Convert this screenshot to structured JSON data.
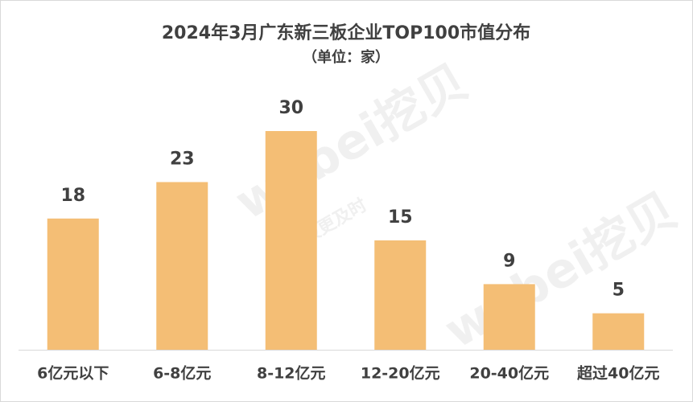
{
  "chart_data": {
    "type": "bar",
    "title": "2024年3月广东新三板企业TOP100市值分布",
    "subtitle": "（单位：家）",
    "categories": [
      "6亿元以下",
      "6-8亿元",
      "8-12亿元",
      "12-20亿元",
      "20-40亿元",
      "超过40亿元"
    ],
    "values": [
      18,
      23,
      30,
      15,
      9,
      5
    ],
    "color": "#f4be75",
    "watermark": [
      "wabei挖贝",
      "让信披更及时"
    ]
  }
}
